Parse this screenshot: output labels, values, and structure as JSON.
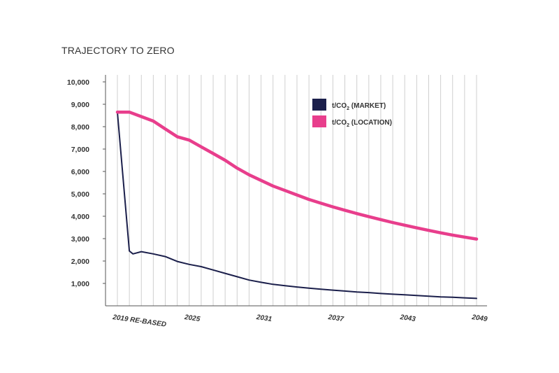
{
  "chart_data": {
    "type": "line",
    "title": "TRAJECTORY TO ZERO",
    "ylim": [
      0,
      10000
    ],
    "xlim": [
      2019,
      2049
    ],
    "grid": "vertical gridlines at each year",
    "legend_position": "top-right",
    "y_ticks": [
      "1,000",
      "2,000",
      "3,000",
      "4,000",
      "5,000",
      "6,000",
      "7,000",
      "8,000",
      "9,000",
      "10,000"
    ],
    "y_tick_values": [
      1000,
      2000,
      3000,
      4000,
      5000,
      6000,
      7000,
      8000,
      9000,
      10000
    ],
    "x_ticks": [
      "2019 RE-BASED",
      "2025",
      "2031",
      "2037",
      "2043",
      "2049"
    ],
    "x_tick_values": [
      2019,
      2025,
      2031,
      2037,
      2043,
      2049
    ],
    "series": [
      {
        "name": "t/CO2 (MARKET)",
        "label_main": "t/CO",
        "label_sub": "2",
        "label_tail": " (MARKET)",
        "color": "#1b1f4b",
        "x": [
          2019,
          2020,
          2020.3,
          2021,
          2022,
          2023,
          2024,
          2025,
          2026,
          2027,
          2028,
          2029,
          2030,
          2031,
          2032,
          2033,
          2034,
          2035,
          2036,
          2037,
          2038,
          2039,
          2040,
          2041,
          2042,
          2043,
          2044,
          2045,
          2046,
          2047,
          2048,
          2049
        ],
        "y": [
          8650,
          2450,
          2320,
          2420,
          2320,
          2200,
          1980,
          1850,
          1750,
          1600,
          1450,
          1300,
          1150,
          1050,
          960,
          900,
          840,
          790,
          740,
          700,
          660,
          620,
          590,
          550,
          520,
          490,
          460,
          430,
          400,
          380,
          355,
          330
        ]
      },
      {
        "name": "t/CO2 (LOCATION)",
        "label_main": "t/CO",
        "label_sub": "2",
        "label_tail": " (LOCATION)",
        "color": "#e83e8c",
        "x": [
          2019,
          2020,
          2021,
          2022,
          2023,
          2024,
          2025,
          2026,
          2027,
          2028,
          2029,
          2030,
          2031,
          2032,
          2033,
          2034,
          2035,
          2036,
          2037,
          2038,
          2039,
          2040,
          2041,
          2042,
          2043,
          2044,
          2045,
          2046,
          2047,
          2048,
          2049
        ],
        "y": [
          8650,
          8650,
          8450,
          8250,
          7900,
          7550,
          7400,
          7100,
          6800,
          6500,
          6150,
          5850,
          5600,
          5350,
          5150,
          4950,
          4750,
          4580,
          4420,
          4270,
          4120,
          3980,
          3850,
          3720,
          3600,
          3480,
          3370,
          3260,
          3160,
          3070,
          2980
        ]
      }
    ]
  }
}
